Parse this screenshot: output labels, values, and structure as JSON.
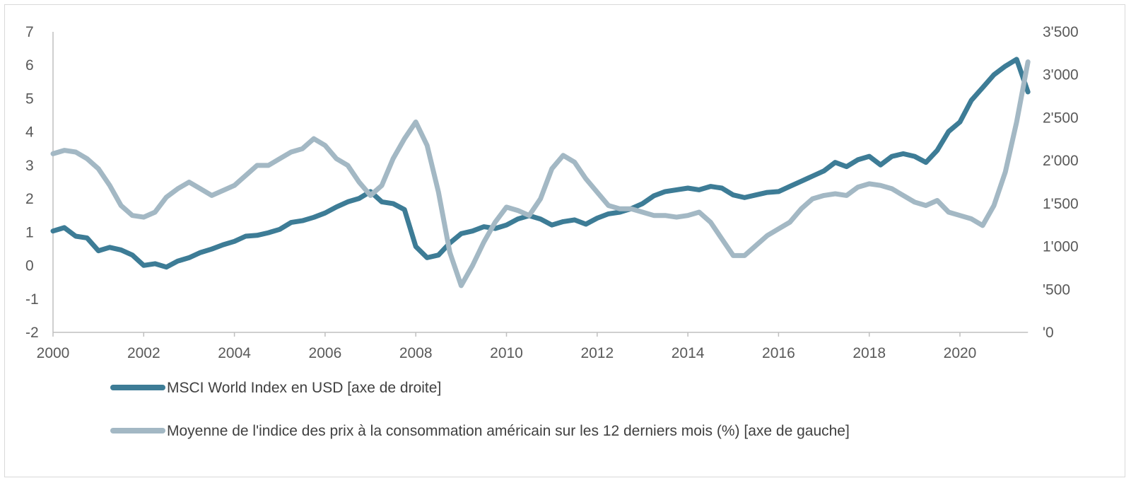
{
  "chart_data": {
    "type": "line",
    "title": "",
    "x_ticks": [
      "2000",
      "2002",
      "2004",
      "2006",
      "2008",
      "2010",
      "2012",
      "2014",
      "2016",
      "2018",
      "2020"
    ],
    "xlim": [
      2000,
      2021.5
    ],
    "left_axis": {
      "ylim": [
        -2,
        7
      ],
      "ticks": [
        "7",
        "6",
        "5",
        "4",
        "3",
        "2",
        "1",
        "0",
        "-1",
        "-2"
      ]
    },
    "right_axis": {
      "ylim": [
        0,
        3500
      ],
      "ticks": [
        "3'500",
        "3'000",
        "2'500",
        "2'000",
        "1'500",
        "1'000",
        "'500",
        "'0"
      ]
    },
    "grid": false,
    "legend_position": "bottom",
    "series": [
      {
        "name": "MSCI World Index en USD [axe de droite]",
        "axis": "right",
        "color": "#3d7c96",
        "x": [
          2000.0,
          2000.25,
          2000.5,
          2000.75,
          2001.0,
          2001.25,
          2001.5,
          2001.75,
          2002.0,
          2002.25,
          2002.5,
          2002.75,
          2003.0,
          2003.25,
          2003.5,
          2003.75,
          2004.0,
          2004.25,
          2004.5,
          2004.75,
          2005.0,
          2005.25,
          2005.5,
          2005.75,
          2006.0,
          2006.25,
          2006.5,
          2006.75,
          2007.0,
          2007.25,
          2007.5,
          2007.75,
          2008.0,
          2008.25,
          2008.5,
          2008.75,
          2009.0,
          2009.25,
          2009.5,
          2009.75,
          2010.0,
          2010.25,
          2010.5,
          2010.75,
          2011.0,
          2011.25,
          2011.5,
          2011.75,
          2012.0,
          2012.25,
          2012.5,
          2012.75,
          2013.0,
          2013.25,
          2013.5,
          2013.75,
          2014.0,
          2014.25,
          2014.5,
          2014.75,
          2015.0,
          2015.25,
          2015.5,
          2015.75,
          2016.0,
          2016.25,
          2016.5,
          2016.75,
          2017.0,
          2017.25,
          2017.5,
          2017.75,
          2018.0,
          2018.25,
          2018.5,
          2018.75,
          2019.0,
          2019.25,
          2019.5,
          2019.75,
          2020.0,
          2020.25,
          2020.5,
          2020.75,
          2021.0,
          2021.25,
          2021.5
        ],
        "values": [
          1180,
          1220,
          1120,
          1100,
          950,
          990,
          960,
          900,
          780,
          800,
          760,
          830,
          870,
          930,
          970,
          1020,
          1060,
          1120,
          1130,
          1160,
          1200,
          1280,
          1300,
          1340,
          1390,
          1460,
          1520,
          1560,
          1640,
          1520,
          1500,
          1430,
          1000,
          870,
          900,
          1040,
          1150,
          1180,
          1230,
          1210,
          1250,
          1320,
          1360,
          1320,
          1250,
          1290,
          1310,
          1260,
          1330,
          1380,
          1400,
          1440,
          1500,
          1590,
          1640,
          1660,
          1680,
          1660,
          1700,
          1680,
          1600,
          1570,
          1600,
          1630,
          1640,
          1700,
          1760,
          1820,
          1880,
          1980,
          1930,
          2010,
          2050,
          1950,
          2050,
          2080,
          2050,
          1980,
          2120,
          2340,
          2450,
          2700,
          2850,
          3000,
          3100,
          3180,
          2800
        ]
      },
      {
        "name": "Moyenne de l'indice des prix à la consommation américain sur les 12 derniers mois (%)  [axe de gauche]",
        "axis": "left",
        "color": "#a3b8c4",
        "x": [
          2000.0,
          2000.25,
          2000.5,
          2000.75,
          2001.0,
          2001.25,
          2001.5,
          2001.75,
          2002.0,
          2002.25,
          2002.5,
          2002.75,
          2003.0,
          2003.25,
          2003.5,
          2003.75,
          2004.0,
          2004.25,
          2004.5,
          2004.75,
          2005.0,
          2005.25,
          2005.5,
          2005.75,
          2006.0,
          2006.25,
          2006.5,
          2006.75,
          2007.0,
          2007.25,
          2007.5,
          2007.75,
          2008.0,
          2008.25,
          2008.5,
          2008.75,
          2009.0,
          2009.25,
          2009.5,
          2009.75,
          2010.0,
          2010.25,
          2010.5,
          2010.75,
          2011.0,
          2011.25,
          2011.5,
          2011.75,
          2012.0,
          2012.25,
          2012.5,
          2012.75,
          2013.0,
          2013.25,
          2013.5,
          2013.75,
          2014.0,
          2014.25,
          2014.5,
          2014.75,
          2015.0,
          2015.25,
          2015.5,
          2015.75,
          2016.0,
          2016.25,
          2016.5,
          2016.75,
          2017.0,
          2017.25,
          2017.5,
          2017.75,
          2018.0,
          2018.25,
          2018.5,
          2018.75,
          2019.0,
          2019.25,
          2019.5,
          2019.75,
          2020.0,
          2020.25,
          2020.5,
          2020.75,
          2021.0,
          2021.25,
          2021.5
        ],
        "values": [
          3.35,
          3.45,
          3.4,
          3.2,
          2.9,
          2.4,
          1.8,
          1.5,
          1.45,
          1.6,
          2.05,
          2.3,
          2.5,
          2.3,
          2.1,
          2.25,
          2.4,
          2.7,
          3.0,
          3.0,
          3.2,
          3.4,
          3.5,
          3.8,
          3.6,
          3.2,
          3.0,
          2.5,
          2.1,
          2.4,
          3.2,
          3.8,
          4.3,
          3.6,
          2.2,
          0.4,
          -0.6,
          0.0,
          0.7,
          1.3,
          1.75,
          1.65,
          1.5,
          2.0,
          2.9,
          3.3,
          3.1,
          2.6,
          2.2,
          1.8,
          1.7,
          1.7,
          1.6,
          1.5,
          1.5,
          1.45,
          1.5,
          1.6,
          1.3,
          0.8,
          0.3,
          0.3,
          0.6,
          0.9,
          1.1,
          1.3,
          1.7,
          2.0,
          2.1,
          2.15,
          2.1,
          2.35,
          2.45,
          2.4,
          2.3,
          2.1,
          1.9,
          1.8,
          1.95,
          1.6,
          1.5,
          1.4,
          1.2,
          1.8,
          2.8,
          4.3,
          6.1
        ]
      }
    ]
  }
}
